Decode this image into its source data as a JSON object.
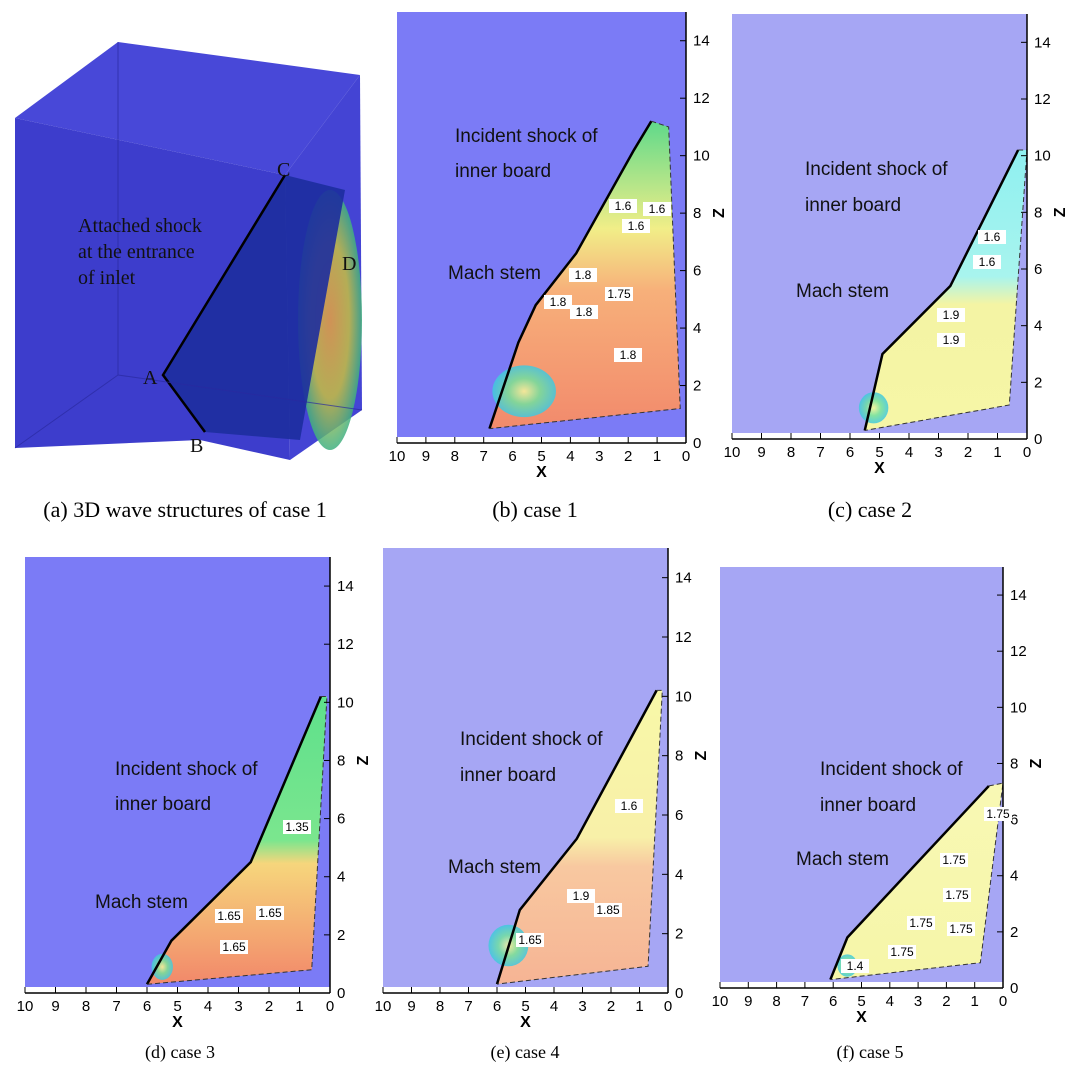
{
  "panels": [
    {
      "caption": "(a) 3D wave structures of case 1",
      "annotations": [
        "Attached shock",
        "at the entrance",
        "of inlet"
      ],
      "points": [
        "A",
        "B",
        "C",
        "D"
      ]
    },
    {
      "caption": "(b) case 1",
      "x_label": "X",
      "z_label": "Z",
      "xticks": [
        10,
        9,
        8,
        7,
        6,
        5,
        4,
        3,
        2,
        1,
        0
      ],
      "zticks": [
        0,
        2,
        4,
        6,
        8,
        10,
        12,
        14
      ],
      "annotations": [
        "Incident  shock of",
        "inner board",
        "Mach stem"
      ],
      "contour_labels": [
        1.6,
        1.6,
        1.6,
        1.8,
        1.75,
        1.8,
        1.8,
        1.8
      ]
    },
    {
      "caption": "(c) case 2",
      "x_label": "X",
      "z_label": "Z",
      "xticks": [
        10,
        9,
        8,
        7,
        6,
        5,
        4,
        3,
        2,
        1,
        0
      ],
      "zticks": [
        0,
        2,
        4,
        6,
        8,
        10,
        12,
        14
      ],
      "annotations": [
        "Incident  shock of",
        "inner board",
        "Mach stem"
      ],
      "contour_labels": [
        1.6,
        1.6,
        1.9,
        1.9
      ]
    },
    {
      "caption": "(d) case 3",
      "x_label": "X",
      "z_label": "Z",
      "xticks": [
        10,
        9,
        8,
        7,
        6,
        5,
        4,
        3,
        2,
        1,
        0
      ],
      "zticks": [
        0,
        2,
        4,
        6,
        8,
        10,
        12,
        14
      ],
      "annotations": [
        "Incident  shock of",
        "inner board",
        "Mach stem"
      ],
      "contour_labels": [
        1.35,
        1.65,
        1.65,
        1.65
      ]
    },
    {
      "caption": "(e) case 4",
      "x_label": "X",
      "z_label": "Z",
      "xticks": [
        10,
        9,
        8,
        7,
        6,
        5,
        4,
        3,
        2,
        1,
        0
      ],
      "zticks": [
        0,
        2,
        4,
        6,
        8,
        10,
        12,
        14
      ],
      "annotations": [
        "Incident  shock of",
        "inner board",
        "Mach stem"
      ],
      "contour_labels": [
        1.6,
        1.9,
        1.85,
        1.65
      ]
    },
    {
      "caption": "(f) case 5",
      "x_label": "X",
      "z_label": "Z",
      "xticks": [
        10,
        9,
        8,
        7,
        6,
        5,
        4,
        3,
        2,
        1,
        0
      ],
      "zticks": [
        0,
        2,
        4,
        6,
        8,
        10,
        12,
        14
      ],
      "annotations": [
        "Incident  shock of",
        "inner board",
        "Mach stem"
      ],
      "contour_labels": [
        1.75,
        1.75,
        1.75,
        1.75,
        1.75,
        1.75,
        1.4
      ]
    }
  ]
}
